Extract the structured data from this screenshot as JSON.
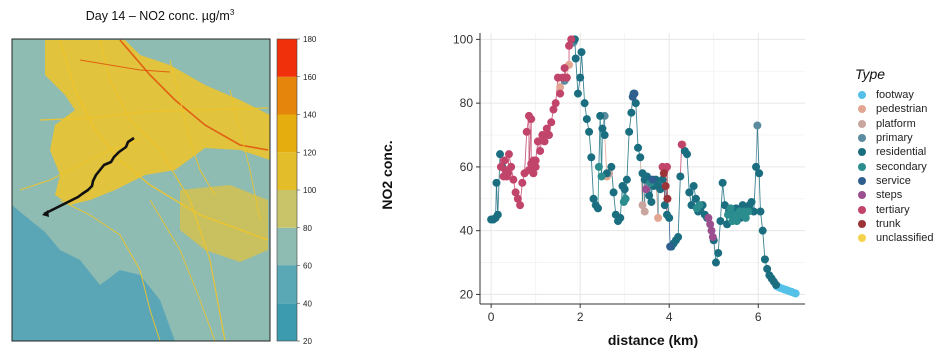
{
  "map": {
    "title_main": "Day 14 – NO2 conc. µg/m",
    "title_sup": "3",
    "colorbar": {
      "range": [
        20,
        180
      ],
      "ticks": [
        "20",
        "40",
        "60",
        "80",
        "100",
        "120",
        "140",
        "160",
        "180"
      ],
      "bands": [
        {
          "from": 20,
          "to": 40,
          "color": "#3d9bb0"
        },
        {
          "from": 40,
          "to": 60,
          "color": "#5aa8b6"
        },
        {
          "from": 60,
          "to": 80,
          "color": "#8fbcb2"
        },
        {
          "from": 80,
          "to": 100,
          "color": "#c9c46a"
        },
        {
          "from": 100,
          "to": 120,
          "color": "#e3be2a"
        },
        {
          "from": 120,
          "to": 140,
          "color": "#e5ad0e"
        },
        {
          "from": 140,
          "to": 160,
          "color": "#e6850c"
        },
        {
          "from": 160,
          "to": 180,
          "color": "#f0300a"
        }
      ]
    },
    "colors": {
      "sea": "#5ba6b6",
      "land": "#8fbcb2",
      "urban": "#f0c428",
      "hot": "#e0570e",
      "track": "#111111"
    }
  },
  "chart_data": {
    "type": "scatter",
    "xlabel": "distance (km)",
    "ylabel": "NO2 conc.",
    "xlim": [
      -0.25,
      7.05
    ],
    "ylim": [
      17,
      102
    ],
    "xticks": [
      0,
      2,
      4,
      6
    ],
    "yticks": [
      20,
      40,
      60,
      80,
      100
    ],
    "grid": true,
    "legend": {
      "title": "Type",
      "position": "right"
    },
    "series": [
      {
        "name": "footway",
        "color": "#55c1e8",
        "points": [
          [
            6.42,
            22.5
          ],
          [
            6.46,
            22.3
          ],
          [
            6.5,
            22.0
          ],
          [
            6.55,
            21.8
          ],
          [
            6.6,
            21.5
          ],
          [
            6.65,
            21.3
          ],
          [
            6.7,
            21.0
          ],
          [
            6.75,
            20.8
          ],
          [
            6.8,
            20.5
          ],
          [
            6.84,
            20.3
          ]
        ]
      },
      {
        "name": "pedestrian",
        "color": "#e3a692",
        "points": [
          [
            1.55,
            85
          ],
          [
            1.75,
            92
          ],
          [
            2.6,
            57
          ],
          [
            4.3,
            67
          ],
          [
            3.75,
            44
          ]
        ]
      },
      {
        "name": "platform",
        "color": "#c9a5a0",
        "points": [
          [
            2.65,
            58
          ],
          [
            3.4,
            48
          ],
          [
            3.45,
            46
          ]
        ]
      },
      {
        "name": "primary",
        "color": "#5b8b9e",
        "points": [
          [
            1.85,
            99
          ],
          [
            2.55,
            76
          ],
          [
            5.98,
            73
          ],
          [
            1.65,
            87
          ]
        ]
      },
      {
        "name": "residential",
        "color": "#1a6e80",
        "points": [
          [
            0.0,
            43.5
          ],
          [
            0.05,
            43.5
          ],
          [
            0.1,
            44
          ],
          [
            0.12,
            55
          ],
          [
            0.15,
            45
          ],
          [
            0.2,
            64
          ],
          [
            0.25,
            60
          ],
          [
            1.88,
            100
          ],
          [
            1.9,
            94
          ],
          [
            1.95,
            83
          ],
          [
            2.0,
            88
          ],
          [
            2.03,
            96
          ],
          [
            2.1,
            80
          ],
          [
            2.15,
            75
          ],
          [
            2.2,
            71
          ],
          [
            2.25,
            63
          ],
          [
            2.3,
            50
          ],
          [
            2.35,
            48
          ],
          [
            2.4,
            47
          ],
          [
            2.45,
            76
          ],
          [
            2.5,
            72
          ],
          [
            2.55,
            70
          ],
          [
            2.6,
            58
          ],
          [
            2.7,
            60
          ],
          [
            2.75,
            52
          ],
          [
            2.8,
            45
          ],
          [
            2.85,
            43
          ],
          [
            2.9,
            44
          ],
          [
            2.95,
            54
          ],
          [
            3.0,
            53
          ],
          [
            3.05,
            56
          ],
          [
            3.1,
            71
          ],
          [
            3.15,
            77
          ],
          [
            3.2,
            83
          ],
          [
            3.25,
            80
          ],
          [
            3.3,
            66
          ],
          [
            3.35,
            63
          ],
          [
            3.4,
            58
          ],
          [
            3.45,
            56
          ],
          [
            3.5,
            57
          ],
          [
            3.55,
            51
          ],
          [
            3.6,
            49
          ],
          [
            3.65,
            54
          ],
          [
            3.7,
            56
          ],
          [
            3.75,
            54
          ],
          [
            3.8,
            53
          ],
          [
            3.85,
            56
          ],
          [
            3.9,
            48
          ],
          [
            3.95,
            45
          ],
          [
            4.0,
            44
          ],
          [
            4.05,
            35
          ],
          [
            4.1,
            36
          ],
          [
            4.15,
            37
          ],
          [
            4.2,
            38
          ],
          [
            4.25,
            57
          ],
          [
            4.35,
            65
          ],
          [
            4.4,
            64
          ],
          [
            4.45,
            52
          ],
          [
            4.5,
            48
          ],
          [
            4.55,
            54
          ],
          [
            4.6,
            50
          ],
          [
            4.65,
            46
          ],
          [
            4.7,
            47
          ],
          [
            4.75,
            48
          ],
          [
            4.8,
            45
          ],
          [
            4.85,
            44
          ],
          [
            5.0,
            37
          ],
          [
            5.05,
            30
          ],
          [
            5.1,
            33
          ],
          [
            5.15,
            43
          ],
          [
            5.2,
            55
          ],
          [
            5.25,
            48
          ],
          [
            5.3,
            42
          ],
          [
            5.35,
            46
          ],
          [
            5.4,
            45
          ],
          [
            5.45,
            44
          ],
          [
            5.5,
            47
          ],
          [
            5.55,
            46
          ],
          [
            5.6,
            44
          ],
          [
            5.65,
            48
          ],
          [
            5.7,
            46
          ],
          [
            5.75,
            47
          ],
          [
            5.8,
            48
          ],
          [
            5.85,
            49
          ],
          [
            5.9,
            46
          ],
          [
            5.95,
            60
          ],
          [
            6.02,
            58
          ],
          [
            6.05,
            46
          ],
          [
            6.1,
            40
          ],
          [
            6.15,
            31
          ],
          [
            6.2,
            28
          ],
          [
            6.25,
            26
          ],
          [
            6.3,
            25
          ],
          [
            6.35,
            24
          ],
          [
            6.4,
            23
          ]
        ]
      },
      {
        "name": "secondary",
        "color": "#2b8d8d",
        "points": [
          [
            2.42,
            60
          ],
          [
            2.48,
            57
          ],
          [
            2.98,
            49
          ],
          [
            3.02,
            50
          ],
          [
            3.58,
            55
          ],
          [
            4.62,
            47
          ],
          [
            4.68,
            48
          ],
          [
            5.32,
            45
          ],
          [
            5.38,
            47
          ],
          [
            5.42,
            43
          ],
          [
            5.48,
            45
          ],
          [
            5.52,
            43
          ],
          [
            5.58,
            46
          ],
          [
            5.62,
            45
          ],
          [
            5.68,
            46
          ],
          [
            5.72,
            44
          ],
          [
            5.78,
            46
          ]
        ]
      },
      {
        "name": "service",
        "color": "#2f5f8f",
        "points": [
          [
            3.18,
            82
          ],
          [
            3.22,
            83
          ],
          [
            3.62,
            56
          ],
          [
            4.02,
            35
          ]
        ]
      },
      {
        "name": "steps",
        "color": "#9b4f8f",
        "points": [
          [
            4.88,
            44
          ],
          [
            4.92,
            42
          ],
          [
            4.95,
            40
          ],
          [
            4.98,
            38
          ],
          [
            3.48,
            53
          ]
        ]
      },
      {
        "name": "tertiary",
        "color": "#c1446a",
        "points": [
          [
            0.22,
            60
          ],
          [
            0.28,
            57
          ],
          [
            0.3,
            62
          ],
          [
            0.32,
            59
          ],
          [
            0.35,
            57
          ],
          [
            0.38,
            58
          ],
          [
            0.4,
            64
          ],
          [
            0.45,
            60
          ],
          [
            0.5,
            56
          ],
          [
            0.55,
            52
          ],
          [
            0.6,
            50
          ],
          [
            0.65,
            48
          ],
          [
            0.7,
            55
          ],
          [
            0.75,
            58
          ],
          [
            0.8,
            71
          ],
          [
            0.85,
            76
          ],
          [
            0.9,
            75
          ],
          [
            0.95,
            62
          ],
          [
            1.0,
            60
          ],
          [
            1.05,
            68
          ],
          [
            1.1,
            65
          ],
          [
            1.15,
            70
          ],
          [
            1.2,
            68
          ],
          [
            1.25,
            72
          ],
          [
            1.3,
            70
          ],
          [
            1.35,
            74
          ],
          [
            1.4,
            78
          ],
          [
            1.45,
            80
          ],
          [
            1.5,
            88
          ],
          [
            1.55,
            83
          ],
          [
            1.6,
            88
          ],
          [
            1.65,
            91
          ],
          [
            1.7,
            88
          ],
          [
            1.75,
            98
          ],
          [
            1.8,
            100
          ],
          [
            3.85,
            60
          ],
          [
            3.9,
            59
          ],
          [
            3.95,
            60
          ],
          [
            4.28,
            67
          ],
          [
            1.0,
            62
          ],
          [
            0.95,
            58
          ],
          [
            0.9,
            61
          ],
          [
            0.85,
            59
          ]
        ]
      },
      {
        "name": "trunk",
        "color": "#9c3339",
        "points": [
          [
            3.88,
            58
          ],
          [
            3.92,
            54
          ],
          [
            3.96,
            50
          ]
        ]
      },
      {
        "name": "unclassified",
        "color": "#f3d34b",
        "points": []
      }
    ]
  }
}
